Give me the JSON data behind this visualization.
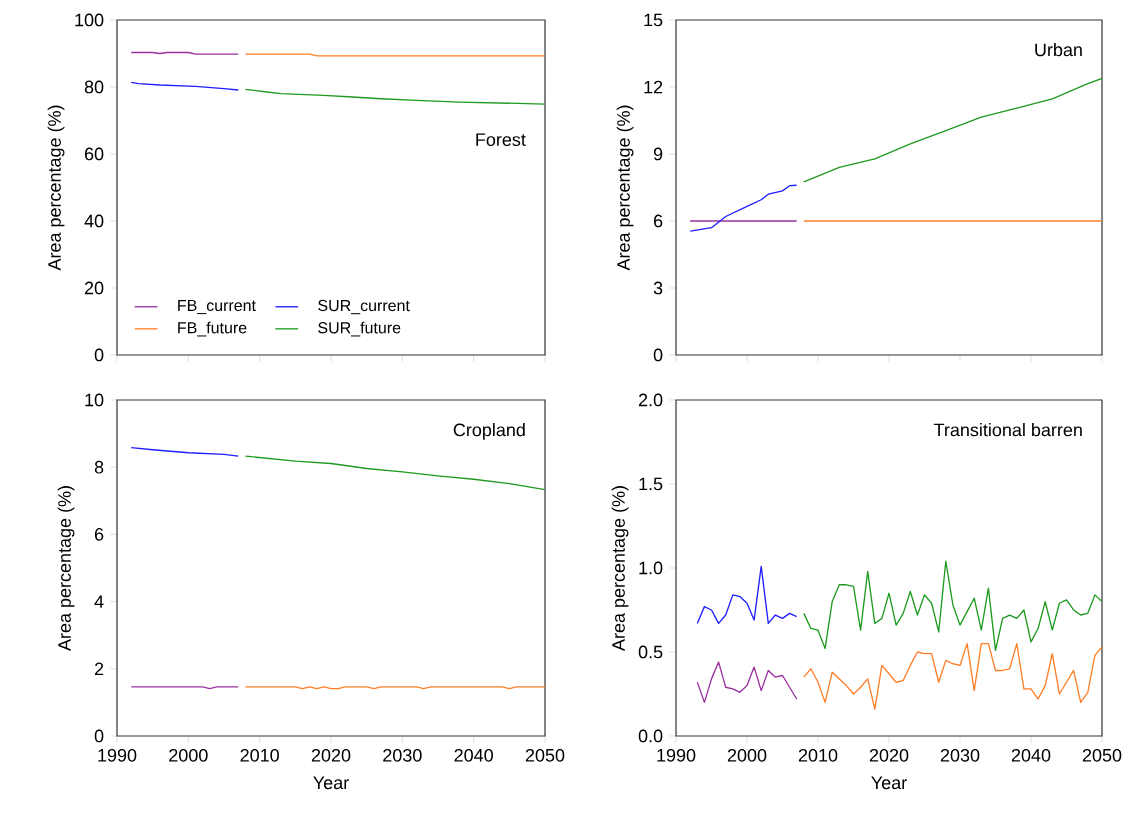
{
  "chart_data": [
    {
      "type": "line",
      "title": "Forest",
      "ylabel": "Area percentage (%)",
      "xlim": [
        1990,
        2050
      ],
      "xticks": [
        1990,
        2000,
        2010,
        2020,
        2030,
        2040,
        2050
      ],
      "ylim": [
        0,
        100
      ],
      "yticks": [
        0,
        20,
        40,
        60,
        80,
        100
      ],
      "tick_labels": "y",
      "legend": "bottom left",
      "marker": "none",
      "grid": false,
      "series": [
        {
          "name": "FB_current",
          "color": "#9b30a0",
          "x": [
            1992,
            1995,
            1996,
            1997,
            2000,
            2001,
            2007
          ],
          "values": [
            90.3,
            90.3,
            90.0,
            90.3,
            90.3,
            89.8,
            89.8
          ]
        },
        {
          "name": "SUR_current",
          "color": "#1f1fff",
          "x": [
            1992,
            1993,
            1996,
            2001,
            2005,
            2007
          ],
          "values": [
            81.4,
            81.0,
            80.6,
            80.2,
            79.5,
            79.1
          ]
        },
        {
          "name": "FB_future",
          "color": "#ff7f27",
          "x": [
            2008,
            2017,
            2018,
            2050
          ],
          "values": [
            89.8,
            89.8,
            89.3,
            89.3
          ]
        },
        {
          "name": "SUR_future",
          "color": "#1e9a1e",
          "x": [
            2008,
            2011,
            2013,
            2019,
            2023,
            2027,
            2032,
            2038,
            2050
          ],
          "values": [
            79.3,
            78.5,
            78.0,
            77.5,
            77.0,
            76.5,
            76.0,
            75.5,
            74.9
          ]
        }
      ]
    },
    {
      "type": "line",
      "title": "Urban",
      "ylabel": "Area percentage (%)",
      "xlim": [
        1990,
        2050
      ],
      "xticks": [
        1990,
        2000,
        2010,
        2020,
        2030,
        2040,
        2050
      ],
      "ylim": [
        0,
        15
      ],
      "yticks": [
        0,
        3,
        6,
        9,
        12,
        15
      ],
      "tick_labels": "y",
      "marker": "none",
      "grid": false,
      "series": [
        {
          "color": "#9b30a0",
          "x": [
            1992,
            2007
          ],
          "values": [
            6.0,
            6.0
          ]
        },
        {
          "color": "#1f1fff",
          "x": [
            1992,
            1995,
            1997,
            2000,
            2002,
            2003,
            2005,
            2006,
            2007
          ],
          "values": [
            5.55,
            5.7,
            6.2,
            6.65,
            6.95,
            7.2,
            7.35,
            7.58,
            7.6
          ]
        },
        {
          "color": "#ff7f27",
          "x": [
            2008,
            2050
          ],
          "values": [
            6.0,
            6.0
          ]
        },
        {
          "color": "#1e9a1e",
          "x": [
            2008,
            2013,
            2018,
            2023,
            2028,
            2033,
            2038,
            2043,
            2048,
            2050
          ],
          "values": [
            7.75,
            8.4,
            8.78,
            9.45,
            10.05,
            10.65,
            11.05,
            11.47,
            12.15,
            12.38
          ]
        }
      ]
    },
    {
      "type": "line",
      "title": "Cropland",
      "xlabel": "Year",
      "ylabel": "Area percentage (%)",
      "xlim": [
        1990,
        2050
      ],
      "xticks": [
        1990,
        2000,
        2010,
        2020,
        2030,
        2040,
        2050
      ],
      "ylim": [
        0,
        10
      ],
      "yticks": [
        0,
        2,
        4,
        6,
        8,
        10
      ],
      "marker": "none",
      "grid": false,
      "series": [
        {
          "color": "#9b30a0",
          "x": [
            1992,
            2002,
            2003,
            2004,
            2007
          ],
          "values": [
            1.46,
            1.46,
            1.41,
            1.46,
            1.46
          ]
        },
        {
          "color": "#1f1fff",
          "x": [
            1992,
            1995,
            2000,
            2005,
            2007
          ],
          "values": [
            8.58,
            8.52,
            8.43,
            8.38,
            8.33
          ]
        },
        {
          "color": "#ff7f27",
          "x": [
            2008,
            2015,
            2016,
            2017,
            2018,
            2019,
            2020,
            2021,
            2022,
            2025,
            2026,
            2027,
            2032,
            2033,
            2034,
            2044,
            2045,
            2046,
            2050
          ],
          "values": [
            1.46,
            1.46,
            1.41,
            1.46,
            1.41,
            1.46,
            1.41,
            1.41,
            1.46,
            1.46,
            1.41,
            1.46,
            1.46,
            1.41,
            1.46,
            1.46,
            1.41,
            1.46,
            1.46
          ]
        },
        {
          "color": "#1e9a1e",
          "x": [
            2008,
            2015,
            2020,
            2025,
            2030,
            2035,
            2040,
            2045,
            2050
          ],
          "values": [
            8.33,
            8.18,
            8.11,
            7.96,
            7.86,
            7.74,
            7.64,
            7.51,
            7.33
          ]
        }
      ]
    },
    {
      "type": "line",
      "title": "Transitional barren",
      "xlabel": "Year",
      "ylabel": "Area percentage (%)",
      "xlim": [
        1990,
        2050
      ],
      "xticks": [
        1990,
        2000,
        2010,
        2020,
        2030,
        2040,
        2050
      ],
      "ylim": [
        0,
        2
      ],
      "yticks": [
        {
          "value": 0,
          "label": "0.0"
        },
        {
          "value": 0.5,
          "label": "0.5"
        },
        {
          "value": 1,
          "label": "1.0"
        },
        {
          "value": 1.5,
          "label": "1.5"
        },
        {
          "value": 2,
          "label": "2.0"
        }
      ],
      "marker": "none",
      "grid": false,
      "series": [
        {
          "color": "#9b30a0",
          "x": [
            1993,
            1994,
            1995,
            1996,
            1997,
            1998,
            1999,
            2000,
            2001,
            2002,
            2003,
            2004,
            2005,
            2006,
            2007
          ],
          "values": [
            0.32,
            0.2,
            0.34,
            0.44,
            0.29,
            0.28,
            0.26,
            0.3,
            0.41,
            0.27,
            0.39,
            0.35,
            0.36,
            0.29,
            0.22
          ]
        },
        {
          "color": "#1f1fff",
          "x": [
            1993,
            1994,
            1995,
            1996,
            1997,
            1998,
            1999,
            2000,
            2001,
            2002,
            2003,
            2004,
            2005,
            2006,
            2007
          ],
          "values": [
            0.67,
            0.77,
            0.75,
            0.67,
            0.72,
            0.84,
            0.83,
            0.79,
            0.69,
            1.01,
            0.67,
            0.72,
            0.7,
            0.73,
            0.71
          ]
        },
        {
          "color": "#ff7f27",
          "x": [
            2008,
            2009,
            2010,
            2011,
            2012,
            2013,
            2014,
            2015,
            2016,
            2017,
            2018,
            2019,
            2020,
            2021,
            2022,
            2023,
            2024,
            2025,
            2026,
            2027,
            2028,
            2029,
            2030,
            2031,
            2032,
            2033,
            2034,
            2035,
            2036,
            2037,
            2038,
            2039,
            2040,
            2041,
            2042,
            2043,
            2044,
            2045,
            2046,
            2047,
            2048,
            2049,
            2050
          ],
          "values": [
            0.35,
            0.4,
            0.32,
            0.2,
            0.38,
            0.34,
            0.3,
            0.25,
            0.29,
            0.34,
            0.16,
            0.42,
            0.37,
            0.32,
            0.33,
            0.42,
            0.5,
            0.49,
            0.49,
            0.32,
            0.45,
            0.43,
            0.42,
            0.55,
            0.27,
            0.55,
            0.55,
            0.39,
            0.39,
            0.4,
            0.55,
            0.28,
            0.28,
            0.22,
            0.3,
            0.49,
            0.25,
            0.32,
            0.39,
            0.2,
            0.26,
            0.48,
            0.53
          ]
        },
        {
          "color": "#1e9a1e",
          "x": [
            2008,
            2009,
            2010,
            2011,
            2012,
            2013,
            2014,
            2015,
            2016,
            2017,
            2018,
            2019,
            2020,
            2021,
            2022,
            2023,
            2024,
            2025,
            2026,
            2027,
            2028,
            2029,
            2030,
            2031,
            2032,
            2033,
            2034,
            2035,
            2036,
            2037,
            2038,
            2039,
            2040,
            2041,
            2042,
            2043,
            2044,
            2045,
            2046,
            2047,
            2048,
            2049,
            2050
          ],
          "values": [
            0.73,
            0.64,
            0.63,
            0.52,
            0.8,
            0.9,
            0.9,
            0.89,
            0.63,
            0.98,
            0.67,
            0.7,
            0.85,
            0.66,
            0.73,
            0.86,
            0.72,
            0.84,
            0.79,
            0.62,
            1.04,
            0.78,
            0.66,
            0.74,
            0.82,
            0.63,
            0.88,
            0.51,
            0.7,
            0.72,
            0.7,
            0.75,
            0.56,
            0.64,
            0.8,
            0.63,
            0.79,
            0.81,
            0.75,
            0.72,
            0.73,
            0.84,
            0.8
          ]
        }
      ]
    }
  ]
}
